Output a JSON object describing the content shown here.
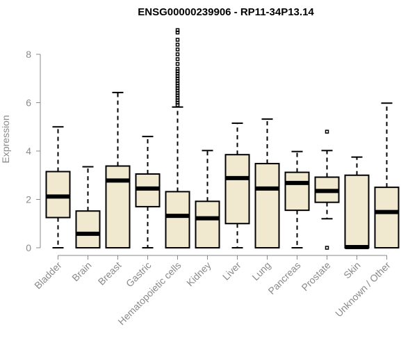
{
  "chart_data": {
    "type": "boxplot",
    "title": "ENSG00000239906 - RP11-34P13.14",
    "xlabel": "",
    "ylabel": "Expression",
    "ylim": [
      0,
      9.2
    ],
    "yticks": [
      0,
      2,
      4,
      6,
      8
    ],
    "box_fill": "#f0e9cf",
    "categories": [
      "Bladder",
      "Brain",
      "Breast",
      "Gastric",
      "Hematopoietic cells",
      "Kidney",
      "Liver",
      "Lung",
      "Pancreas",
      "Prostate",
      "Skin",
      "Unknown / Other"
    ],
    "boxes": [
      {
        "min": 0,
        "q1": 1.25,
        "median": 2.12,
        "q3": 3.15,
        "max": 5.0,
        "outliers": []
      },
      {
        "min": 0,
        "q1": 0,
        "median": 0.58,
        "q3": 1.52,
        "max": 3.35,
        "outliers": []
      },
      {
        "min": 0,
        "q1": 0,
        "median": 2.78,
        "q3": 3.38,
        "max": 6.42,
        "outliers": []
      },
      {
        "min": 0,
        "q1": 1.7,
        "median": 2.45,
        "q3": 3.05,
        "max": 4.6,
        "outliers": []
      },
      {
        "min": 0,
        "q1": 0,
        "median": 1.32,
        "q3": 2.32,
        "max": 5.82,
        "outliers": [
          5.9,
          6.0,
          6.1,
          6.2,
          6.3,
          6.4,
          6.5,
          6.6,
          6.7,
          6.8,
          6.9,
          7.0,
          7.1,
          7.2,
          7.3,
          7.4,
          7.6,
          7.8,
          8.0,
          8.2,
          8.4,
          8.6,
          8.9,
          9.0
        ]
      },
      {
        "min": 0,
        "q1": 0,
        "median": 1.22,
        "q3": 1.92,
        "max": 4.02,
        "outliers": []
      },
      {
        "min": 0,
        "q1": 1.0,
        "median": 2.88,
        "q3": 3.85,
        "max": 5.15,
        "outliers": []
      },
      {
        "min": 0,
        "q1": 0,
        "median": 2.45,
        "q3": 3.48,
        "max": 5.32,
        "outliers": []
      },
      {
        "min": 0,
        "q1": 1.55,
        "median": 2.68,
        "q3": 3.12,
        "max": 3.98,
        "outliers": []
      },
      {
        "min": 1.2,
        "q1": 1.88,
        "median": 2.35,
        "q3": 2.92,
        "max": 4.02,
        "outliers": [
          0,
          4.8
        ]
      },
      {
        "min": 0,
        "q1": 0,
        "median": 0.03,
        "q3": 3.0,
        "max": 3.75,
        "outliers": []
      },
      {
        "min": 0,
        "q1": 0,
        "median": 1.48,
        "q3": 2.5,
        "max": 5.98,
        "outliers": []
      }
    ]
  }
}
